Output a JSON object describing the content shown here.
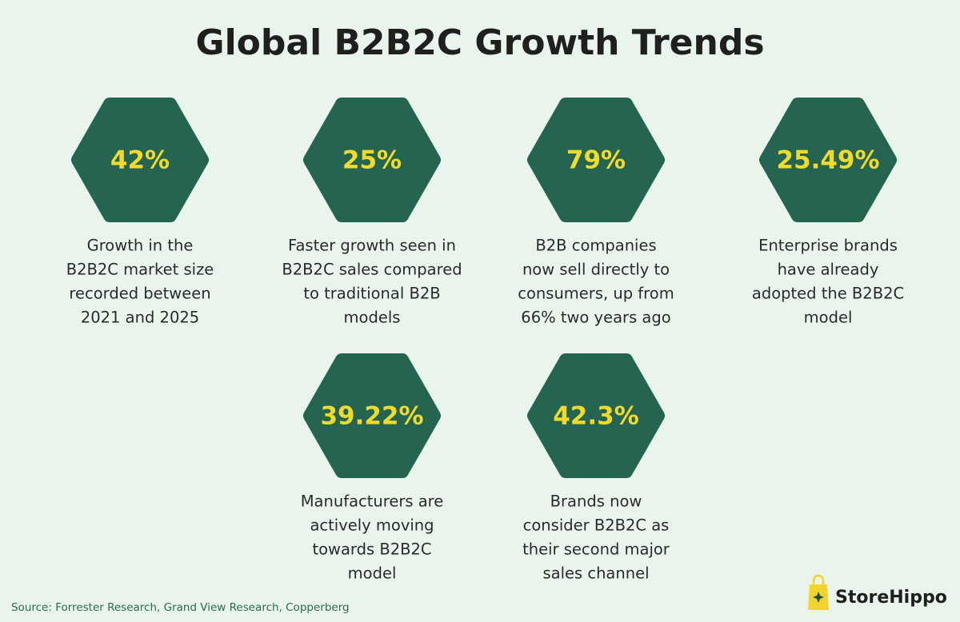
{
  "header": {
    "title": "Global B2B2C Growth Trends"
  },
  "stats": [
    {
      "value": "42%",
      "description": [
        "Growth in the",
        "B2B2C market size",
        "recorded between",
        "2021 and 2025"
      ]
    },
    {
      "value": "25%",
      "description": [
        "Faster growth seen in",
        "B2B2C sales compared",
        "to traditional B2B",
        "models"
      ]
    },
    {
      "value": "79%",
      "description": [
        "B2B companies",
        "now sell directly to",
        "consumers, up from",
        "66% two years ago"
      ]
    },
    {
      "value": "25.49%",
      "description": [
        "Enterprise brands",
        "have already",
        "adopted the B2B2C",
        "model"
      ]
    },
    {
      "value": "39.22%",
      "description": [
        "Manufacturers are",
        "actively moving",
        "towards B2B2C",
        "model"
      ]
    },
    {
      "value": "42.3%",
      "description": [
        "Brands now",
        "consider B2B2C as",
        "their second major",
        "sales channel"
      ]
    }
  ],
  "footer": {
    "source": "Source: Forrester Research, Grand View Research, Copperberg",
    "brand": "StoreHippo"
  }
}
